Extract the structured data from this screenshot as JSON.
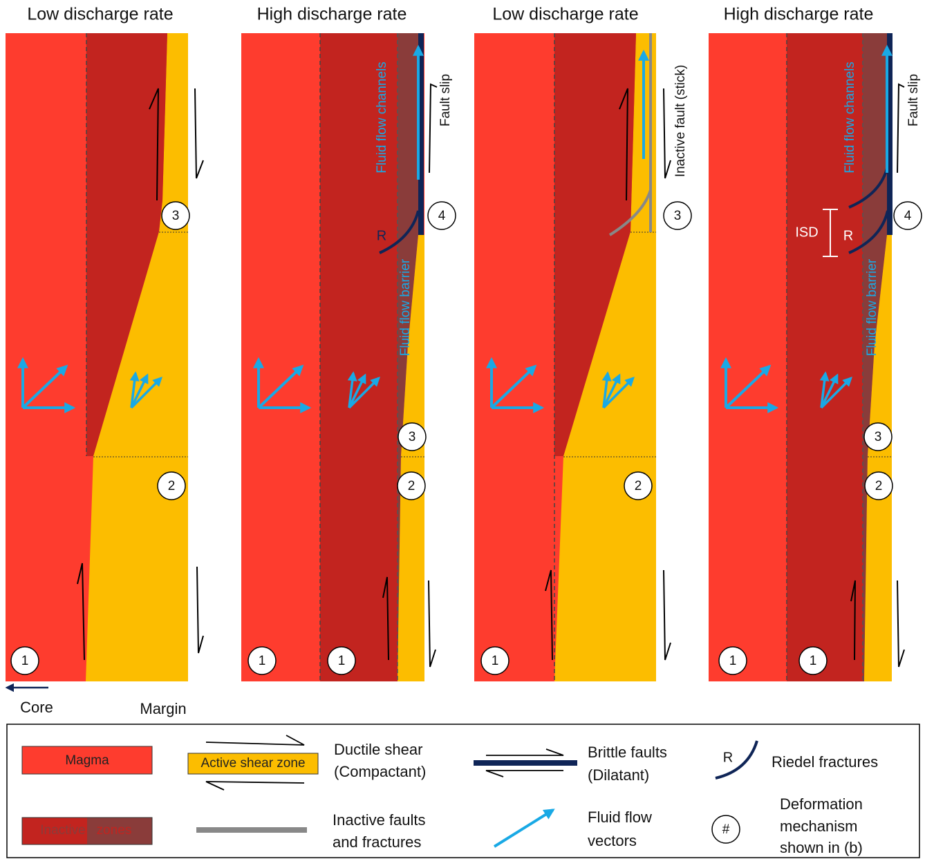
{
  "panels": [
    {
      "title": "Low discharge rate",
      "markers": [
        1,
        2,
        3
      ]
    },
    {
      "title": "High discharge rate",
      "markers": [
        1,
        1,
        2,
        3,
        4
      ],
      "labels": {
        "channels": "Fluid flow channels",
        "slip": "Fault slip",
        "riedel": "R",
        "barrier": "Fluid flow barrier"
      }
    },
    {
      "title": "Low discharge rate",
      "markers": [
        1,
        2,
        3
      ],
      "labels": {
        "inactive_fault": "Inactive fault (stick)"
      }
    },
    {
      "title": "High discharge rate",
      "markers": [
        1,
        1,
        2,
        3,
        4
      ],
      "labels": {
        "channels": "Fluid flow channels",
        "slip": "Fault slip",
        "isd": "ISD",
        "riedel": "R",
        "barrier": "Fluid flow barrier"
      }
    }
  ],
  "direction": {
    "core": "Core",
    "margin": "Margin"
  },
  "legend": {
    "magma": "Magma",
    "active_shear_zone": "Active shear zone",
    "ductile_shear": [
      "Ductile shear",
      "(Compactant)"
    ],
    "brittle_faults": [
      "Brittle faults",
      "(Dilatant)"
    ],
    "riedel_symbol": "R",
    "riedel_fractures": "Riedel fractures",
    "inactive_zones": [
      "Inactive",
      "zones"
    ],
    "inactive_faults": [
      "Inactive faults",
      "and fractures"
    ],
    "fluid_flow_vectors": [
      "Fluid flow",
      "vectors"
    ],
    "deformation_symbol": "#",
    "deformation_mechanism": [
      "Deformation",
      "mechanism",
      "shown in (b)"
    ]
  }
}
